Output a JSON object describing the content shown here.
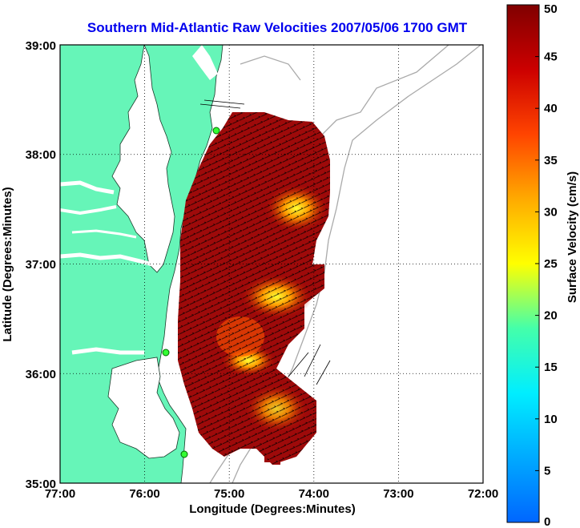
{
  "title": "Southern Mid-Atlantic Raw Velocities 2007/05/06 1700 GMT",
  "map": {
    "xlabel": "Longitude (Degrees:Minutes)",
    "ylabel": "Latitude (Degrees:Minutes)",
    "x_ticks": [
      "77:00",
      "76:00",
      "75:00",
      "74:00",
      "73:00",
      "72:00"
    ],
    "y_ticks": [
      "39:00",
      "38:00",
      "37:00",
      "36:00",
      "35:00"
    ],
    "xlim": [
      -77,
      -72
    ],
    "ylim": [
      35,
      39
    ],
    "land_color": "#66f5b8",
    "water_color": "#ffffff",
    "contour_color": "#aaaaaa",
    "grid": "dotted",
    "stations": [
      "38:11 N 75:10 W",
      "36:11 N 75:45 W",
      "35:15 N 75:31 W"
    ]
  },
  "colorbar": {
    "label": "Surface Velocity (cm/s)",
    "ticks": [
      "0",
      "5",
      "10",
      "15",
      "20",
      "25",
      "30",
      "35",
      "40",
      "45",
      "50"
    ],
    "range": [
      0,
      50
    ],
    "colormap": "jet"
  }
}
